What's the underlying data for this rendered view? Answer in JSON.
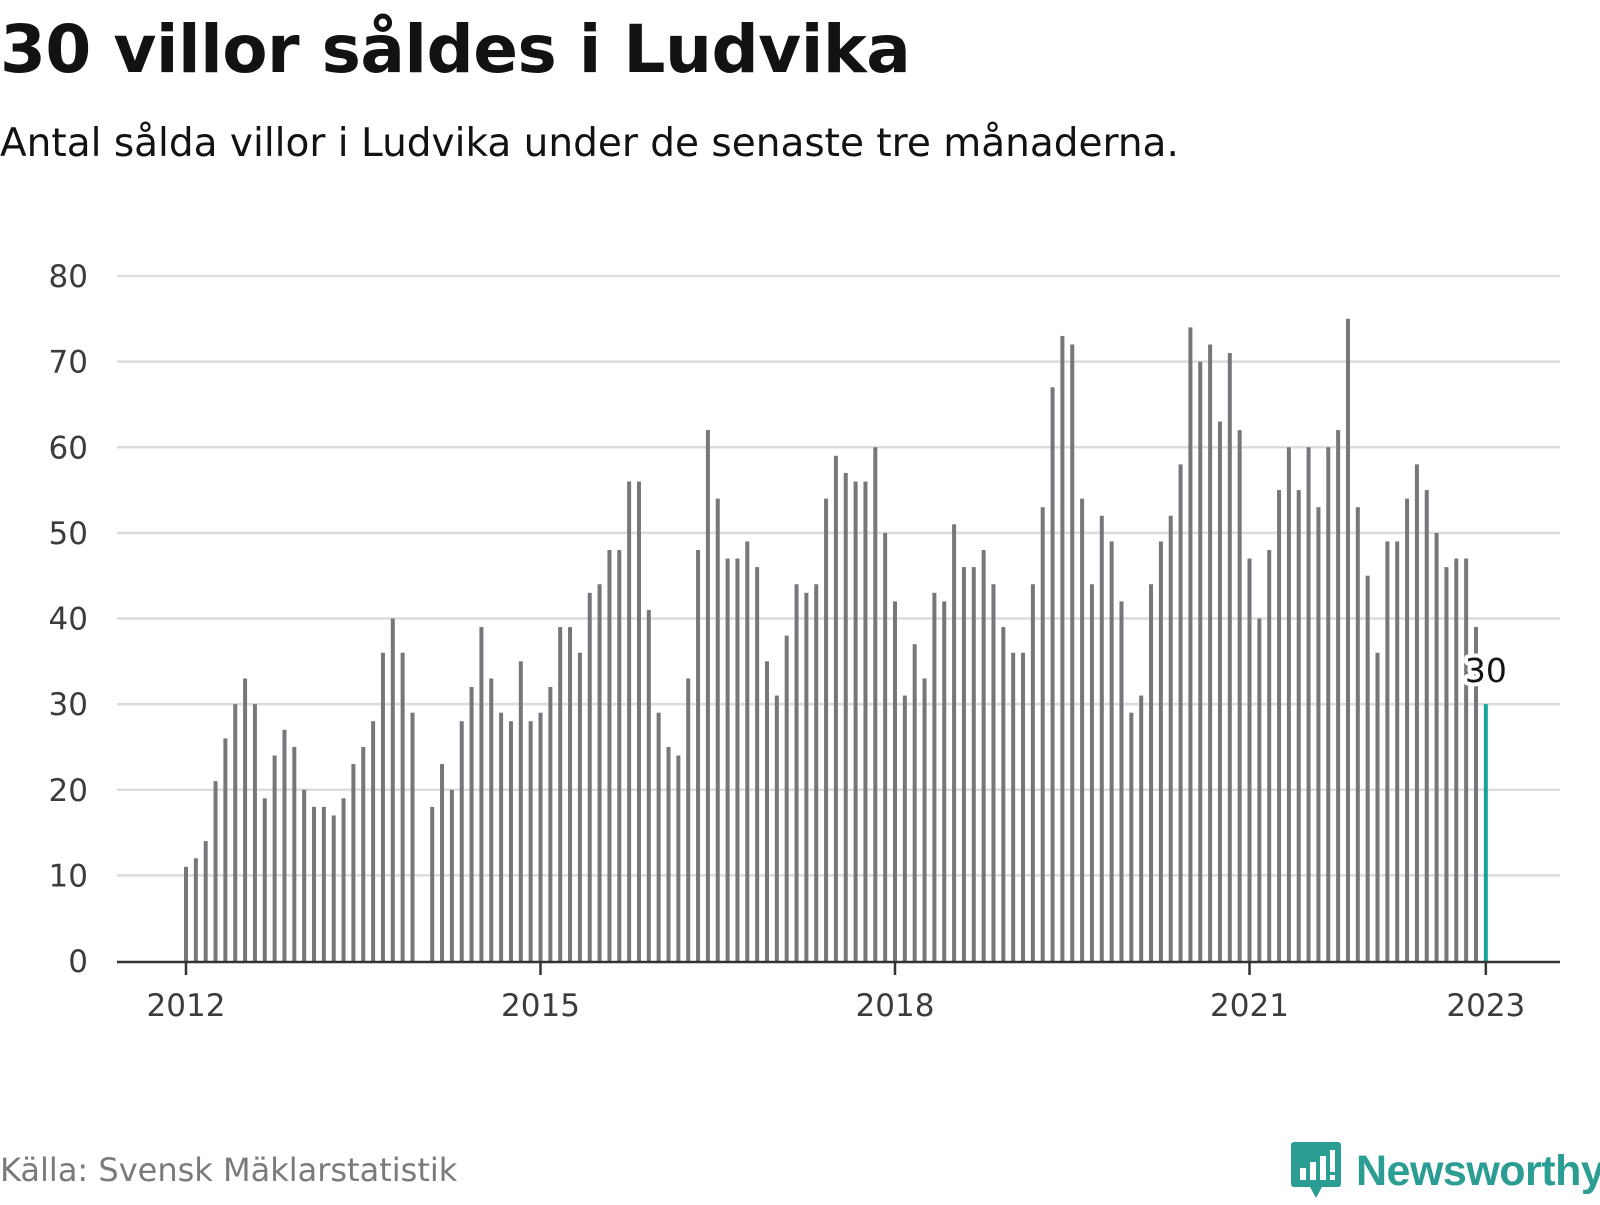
{
  "title": "30 villor såldes i Ludvika",
  "subtitle": "Antal sålda villor i Ludvika under de senaste tre månaderna.",
  "source": "Källa: Svensk Mäklarstatistik",
  "brand": {
    "name": "Newsworthy",
    "icon": "newsworthy-logo-icon",
    "color": "#2b9d93"
  },
  "colors": {
    "bar": "#76767b",
    "highlight": "#17a398",
    "grid": "#dcdcdc",
    "axis": "#333333"
  },
  "chart_data": {
    "type": "bar",
    "title": "30 villor såldes i Ludvika",
    "subtitle": "Antal sålda villor i Ludvika under de senaste tre månaderna.",
    "xlabel": "",
    "ylabel": "",
    "ylim": [
      0,
      80
    ],
    "yticks": [
      0,
      10,
      20,
      30,
      40,
      50,
      60,
      70,
      80
    ],
    "grid": true,
    "x_start": "2012-01",
    "x_end": "2023-01",
    "frequency": "monthly",
    "xtick_labels": [
      {
        "label": "2012",
        "x": "2012-01"
      },
      {
        "label": "2015",
        "x": "2015-01"
      },
      {
        "label": "2018",
        "x": "2018-01"
      },
      {
        "label": "2021",
        "x": "2021-01"
      },
      {
        "label": "2023",
        "x": "2023-01"
      }
    ],
    "values": [
      11,
      12,
      14,
      21,
      26,
      30,
      33,
      30,
      19,
      24,
      27,
      25,
      20,
      18,
      18,
      17,
      19,
      23,
      25,
      28,
      36,
      40,
      36,
      29,
      null,
      18,
      23,
      20,
      28,
      32,
      39,
      33,
      29,
      28,
      35,
      28,
      29,
      32,
      39,
      39,
      36,
      43,
      44,
      48,
      48,
      56,
      56,
      41,
      29,
      25,
      24,
      33,
      48,
      62,
      54,
      47,
      47,
      49,
      46,
      35,
      31,
      38,
      44,
      43,
      44,
      54,
      59,
      57,
      56,
      56,
      60,
      50,
      42,
      31,
      37,
      33,
      43,
      42,
      51,
      46,
      46,
      48,
      44,
      39,
      36,
      36,
      44,
      53,
      67,
      73,
      72,
      54,
      44,
      52,
      49,
      42,
      29,
      31,
      44,
      49,
      52,
      58,
      74,
      70,
      72,
      63,
      71,
      62,
      47,
      40,
      48,
      55,
      60,
      55,
      60,
      53,
      60,
      62,
      75,
      53,
      45,
      36,
      49,
      49,
      54,
      58,
      55,
      50,
      46,
      47,
      47,
      39,
      30
    ],
    "highlight_last": true,
    "annotations": [
      {
        "x": "2023-01",
        "text": "30"
      }
    ]
  }
}
